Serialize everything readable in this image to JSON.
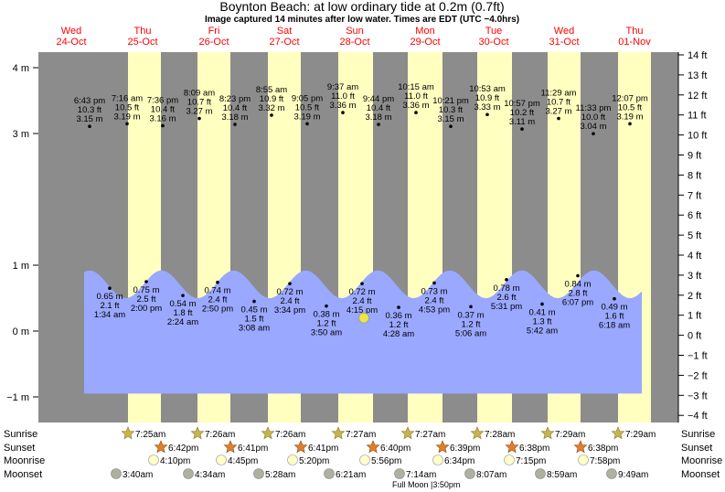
{
  "header": {
    "title": "Boynton Beach: at low  ordinary tide at 0.2m (0.7ft)",
    "subtitle": "Image captured 14 minutes after low water. Times are EDT (UTC −4.0hrs)"
  },
  "colors": {
    "night": "#8c8c8c",
    "day": "#ffffc0",
    "water": "#9aa8ff",
    "date_text": "#ff0000",
    "sun_star": "#c8b44a",
    "sunset_star": "#e0802a",
    "moonrise": "#ffffc8",
    "moonset": "#b0b0a0",
    "current_marker": "#e8e840"
  },
  "chart_data": {
    "type": "area",
    "title": "Boynton Beach: at low  ordinary tide at 0.2m (0.7ft)",
    "left_axis_ticks": [
      "4 m",
      "3 m",
      "1 m",
      "0 m",
      "−1 m"
    ],
    "right_axis_ticks": [
      "14 ft",
      "13 ft",
      "12 ft",
      "11 ft",
      "10 ft",
      "9 ft",
      "8 ft",
      "7 ft",
      "6 ft",
      "5 ft",
      "4 ft",
      "3 ft",
      "2 ft",
      "1 ft",
      "0 ft",
      "−1 ft",
      "−2 ft",
      "−3 ft",
      "−4 ft"
    ],
    "ylim_m": [
      -1.3,
      4.3
    ],
    "days": [
      {
        "dow": "Wed",
        "date": "24-Oct"
      },
      {
        "dow": "Thu",
        "date": "25-Oct"
      },
      {
        "dow": "Fri",
        "date": "26-Oct"
      },
      {
        "dow": "Sat",
        "date": "27-Oct"
      },
      {
        "dow": "Sun",
        "date": "28-Oct"
      },
      {
        "dow": "Mon",
        "date": "29-Oct"
      },
      {
        "dow": "Tue",
        "date": "30-Oct"
      },
      {
        "dow": "Wed",
        "date": "31-Oct"
      },
      {
        "dow": "Thu",
        "date": "01-Nov"
      }
    ],
    "high_tides": [
      {
        "time": "6:43 pm",
        "ft": "10.3 ft",
        "m": "3.15 m",
        "value": 3.15
      },
      {
        "time": "7:16 am",
        "ft": "10.5 ft",
        "m": "3.19 m",
        "value": 3.19
      },
      {
        "time": "7:36 pm",
        "ft": "10.4 ft",
        "m": "3.16 m",
        "value": 3.16
      },
      {
        "time": "8:09 am",
        "ft": "10.7 ft",
        "m": "3.27 m",
        "value": 3.27
      },
      {
        "time": "8:23 pm",
        "ft": "10.4 ft",
        "m": "3.18 m",
        "value": 3.18
      },
      {
        "time": "8:55 am",
        "ft": "10.9 ft",
        "m": "3.32 m",
        "value": 3.32
      },
      {
        "time": "9:05 pm",
        "ft": "10.5 ft",
        "m": "3.19 m",
        "value": 3.19
      },
      {
        "time": "9:37 am",
        "ft": "11.0 ft",
        "m": "3.36 m",
        "value": 3.36
      },
      {
        "time": "9:44 pm",
        "ft": "10.4 ft",
        "m": "3.18 m",
        "value": 3.18
      },
      {
        "time": "10:15 am",
        "ft": "11.0 ft",
        "m": "3.36 m",
        "value": 3.36
      },
      {
        "time": "10:21 pm",
        "ft": "10.3 ft",
        "m": "3.15 m",
        "value": 3.15
      },
      {
        "time": "10:53 am",
        "ft": "10.9 ft",
        "m": "3.33 m",
        "value": 3.33
      },
      {
        "time": "10:57 pm",
        "ft": "10.2 ft",
        "m": "3.11 m",
        "value": 3.11
      },
      {
        "time": "11:29 am",
        "ft": "10.7 ft",
        "m": "3.27 m",
        "value": 3.27
      },
      {
        "time": "11:33 pm",
        "ft": "10.0 ft",
        "m": "3.04 m",
        "value": 3.04
      },
      {
        "time": "12:07 pm",
        "ft": "10.5 ft",
        "m": "3.19 m",
        "value": 3.19
      }
    ],
    "low_tides": [
      {
        "m": "0.65 m",
        "ft": "2.1 ft",
        "time": "1:34 am",
        "value": 0.65
      },
      {
        "m": "0.75 m",
        "ft": "2.5 ft",
        "time": "2:00 pm",
        "value": 0.75
      },
      {
        "m": "0.54 m",
        "ft": "1.8 ft",
        "time": "2:24 am",
        "value": 0.54
      },
      {
        "m": "0.74 m",
        "ft": "2.4 ft",
        "time": "2:50 pm",
        "value": 0.74
      },
      {
        "m": "0.45 m",
        "ft": "1.5 ft",
        "time": "3:08 am",
        "value": 0.45
      },
      {
        "m": "0.72 m",
        "ft": "2.4 ft",
        "time": "3:34 pm",
        "value": 0.72
      },
      {
        "m": "0.38 m",
        "ft": "1.2 ft",
        "time": "3:50 am",
        "value": 0.38
      },
      {
        "m": "0.72 m",
        "ft": "2.4 ft",
        "time": "4:15 pm",
        "value": 0.72
      },
      {
        "m": "0.36 m",
        "ft": "1.2 ft",
        "time": "4:28 am",
        "value": 0.36
      },
      {
        "m": "0.73 m",
        "ft": "2.4 ft",
        "time": "4:53 pm",
        "value": 0.73
      },
      {
        "m": "0.37 m",
        "ft": "1.2 ft",
        "time": "5:06 am",
        "value": 0.37
      },
      {
        "m": "0.78 m",
        "ft": "2.6 ft",
        "time": "5:31 pm",
        "value": 0.78
      },
      {
        "m": "0.41 m",
        "ft": "1.3 ft",
        "time": "5:42 am",
        "value": 0.41
      },
      {
        "m": "0.84 m",
        "ft": "2.8 ft",
        "time": "6:07 pm",
        "value": 0.84
      },
      {
        "m": "0.49 m",
        "ft": "1.6 ft",
        "time": "6:18 am",
        "value": 0.49
      }
    ],
    "current_level_m": 0.2
  },
  "rows": {
    "labels": {
      "sunrise": "Sunrise",
      "sunset": "Sunset",
      "moonrise": "Moonrise",
      "moonset": "Moonset"
    },
    "sunrise": [
      "7:25am",
      "7:26am",
      "7:26am",
      "7:27am",
      "7:27am",
      "7:28am",
      "7:29am",
      "7:29am"
    ],
    "sunset": [
      "6:42pm",
      "6:41pm",
      "6:41pm",
      "6:40pm",
      "6:39pm",
      "6:38pm",
      "6:38pm"
    ],
    "moonrise": [
      "4:10pm",
      "4:45pm",
      "5:20pm",
      "5:56pm",
      "6:34pm",
      "7:15pm",
      "7:58pm"
    ],
    "moonset": [
      "3:40am",
      "4:34am",
      "5:28am",
      "6:21am",
      "7:14am",
      "8:07am",
      "8:59am",
      "9:49am"
    ],
    "full_moon": "Full Moon |3:50pm"
  }
}
